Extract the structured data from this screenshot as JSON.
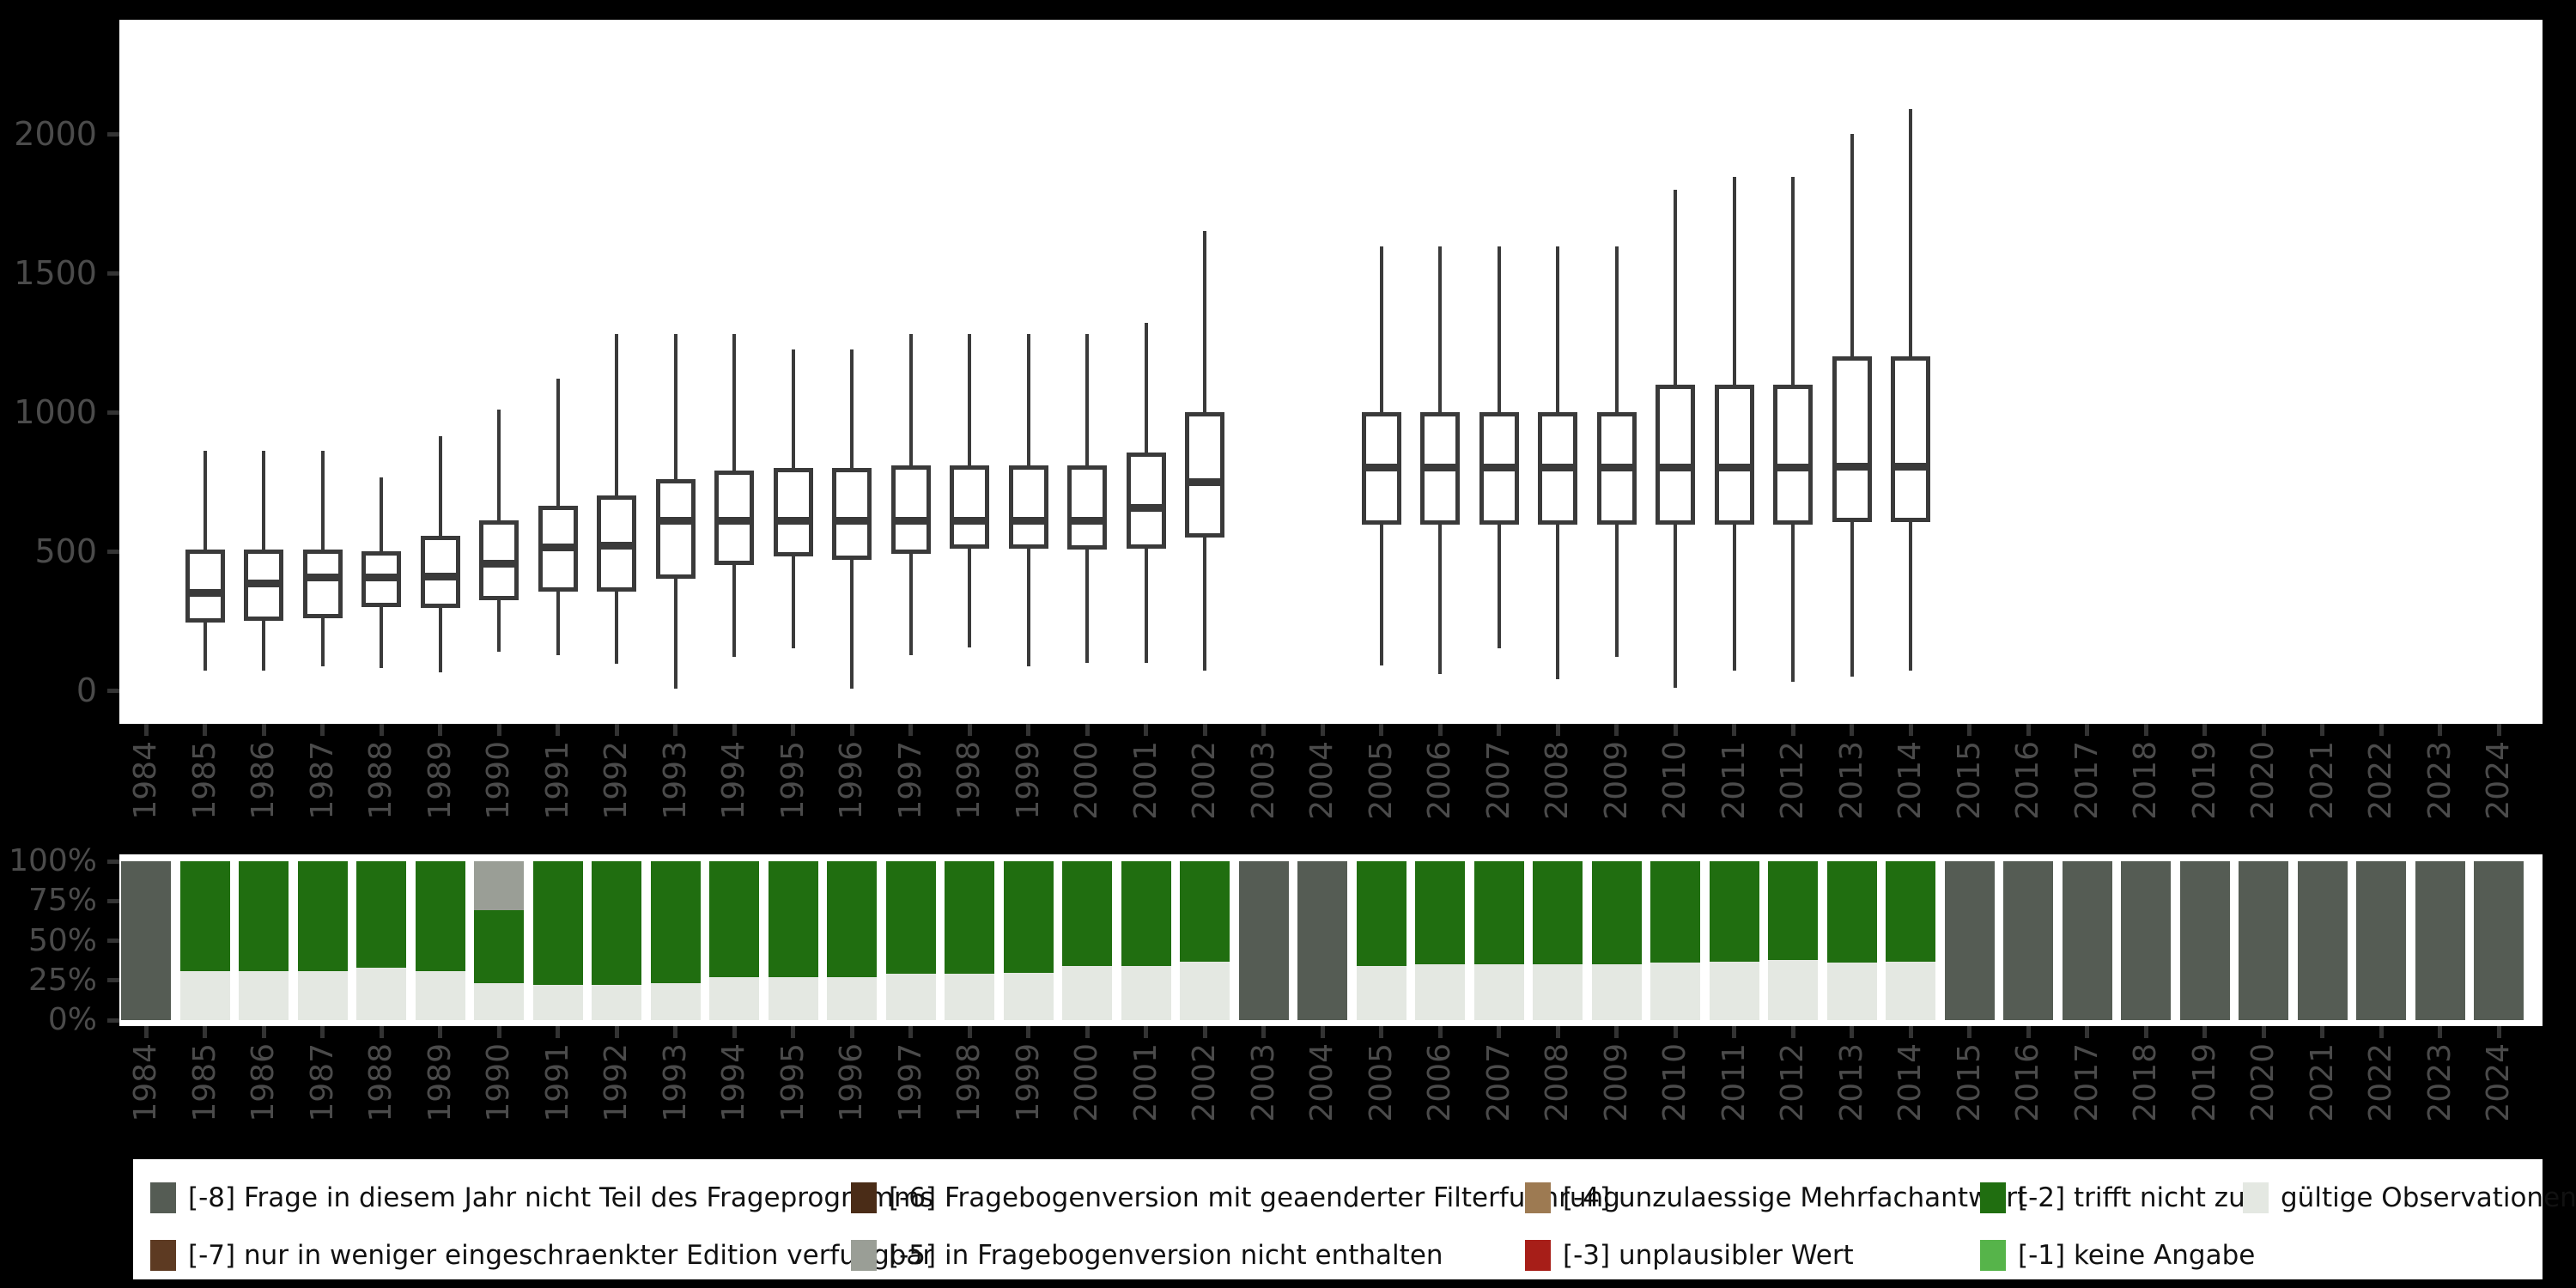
{
  "colors": {
    "background": "#000000",
    "panel": "#ffffff",
    "axis_text": "#4b4b4b",
    "tick": "#333333",
    "box_stroke": "#3a3a3a",
    "segments": {
      "-8": "#555c54",
      "-7": "#5d3a22",
      "-6": "#4a2c17",
      "-5": "#9a9e96",
      "-4": "#9d7a52",
      "-3": "#a71e18",
      "-2": "#206e10",
      "-1": "#56b44a",
      "valid": "#e4e8e2"
    }
  },
  "chart_data": [
    {
      "type": "boxplot",
      "title": "",
      "xlabel": "",
      "ylabel": "",
      "x_years": [
        1984,
        1985,
        1986,
        1987,
        1988,
        1989,
        1990,
        1991,
        1992,
        1993,
        1994,
        1995,
        1996,
        1997,
        1998,
        1999,
        2000,
        2001,
        2002,
        2003,
        2004,
        2005,
        2006,
        2007,
        2008,
        2009,
        2010,
        2011,
        2012,
        2013,
        2014,
        2015,
        2016,
        2017,
        2018,
        2019,
        2020,
        2021,
        2022,
        2023,
        2024
      ],
      "y_tick_values": [
        0,
        500,
        1000,
        1500,
        2000
      ],
      "y_tick_labels": [
        "0",
        "500",
        "1000",
        "1500",
        "2000"
      ],
      "ylim": [
        -120,
        2410
      ],
      "grid": "off",
      "note_years_without_box": [
        1984,
        2003,
        2004,
        2015,
        2016,
        2017,
        2018,
        2019,
        2020,
        2021,
        2022,
        2023,
        2024
      ],
      "columns": [
        "year",
        "whisker_low",
        "q1",
        "median",
        "q3",
        "whisker_high"
      ],
      "boxes": [
        [
          1985,
          70,
          245,
          350,
          505,
          860
        ],
        [
          1986,
          70,
          250,
          385,
          505,
          860
        ],
        [
          1987,
          85,
          260,
          405,
          505,
          860
        ],
        [
          1988,
          80,
          300,
          405,
          500,
          765
        ],
        [
          1989,
          65,
          295,
          410,
          555,
          915
        ],
        [
          1990,
          140,
          325,
          455,
          610,
          1010
        ],
        [
          1991,
          125,
          355,
          515,
          665,
          1120
        ],
        [
          1992,
          95,
          355,
          520,
          700,
          1280
        ],
        [
          1993,
          5,
          400,
          610,
          760,
          1280
        ],
        [
          1994,
          120,
          450,
          610,
          790,
          1280
        ],
        [
          1995,
          150,
          480,
          610,
          800,
          1225
        ],
        [
          1996,
          5,
          470,
          610,
          800,
          1225
        ],
        [
          1997,
          125,
          490,
          610,
          810,
          1280
        ],
        [
          1998,
          155,
          510,
          610,
          810,
          1280
        ],
        [
          1999,
          85,
          510,
          610,
          810,
          1280
        ],
        [
          2000,
          100,
          505,
          610,
          810,
          1280
        ],
        [
          2001,
          100,
          510,
          655,
          855,
          1320
        ],
        [
          2002,
          70,
          550,
          750,
          1000,
          1650
        ],
        [
          2005,
          90,
          595,
          800,
          1000,
          1595
        ],
        [
          2006,
          60,
          595,
          800,
          1000,
          1595
        ],
        [
          2007,
          150,
          595,
          800,
          1000,
          1595
        ],
        [
          2008,
          40,
          595,
          800,
          1000,
          1595
        ],
        [
          2009,
          120,
          595,
          800,
          1000,
          1595
        ],
        [
          2010,
          10,
          595,
          800,
          1100,
          1800
        ],
        [
          2011,
          70,
          595,
          800,
          1100,
          1845
        ],
        [
          2012,
          30,
          595,
          800,
          1100,
          1845
        ],
        [
          2013,
          50,
          605,
          805,
          1200,
          2000
        ],
        [
          2014,
          70,
          605,
          805,
          1200,
          2090
        ]
      ]
    },
    {
      "type": "bar",
      "subtype": "stacked-percent",
      "title": "",
      "x_years": [
        1984,
        1985,
        1986,
        1987,
        1988,
        1989,
        1990,
        1991,
        1992,
        1993,
        1994,
        1995,
        1996,
        1997,
        1998,
        1999,
        2000,
        2001,
        2002,
        2003,
        2004,
        2005,
        2006,
        2007,
        2008,
        2009,
        2010,
        2011,
        2012,
        2013,
        2014,
        2015,
        2016,
        2017,
        2018,
        2019,
        2020,
        2021,
        2022,
        2023,
        2024
      ],
      "y_tick_values": [
        100,
        75,
        50,
        25,
        0
      ],
      "y_tick_labels": [
        "100%",
        "75%",
        "50%",
        "25%",
        "0%"
      ],
      "ylim": [
        0,
        100
      ],
      "grid": "off",
      "segment_order_note": "segments listed top-to-bottom of each bar, pct of 100",
      "bars": [
        {
          "year": 1984,
          "segments": [
            [
              "-8",
              100
            ]
          ]
        },
        {
          "year": 1985,
          "segments": [
            [
              "-2",
              69
            ],
            [
              "valid",
              31
            ]
          ]
        },
        {
          "year": 1986,
          "segments": [
            [
              "-2",
              69
            ],
            [
              "valid",
              31
            ]
          ]
        },
        {
          "year": 1987,
          "segments": [
            [
              "-2",
              69
            ],
            [
              "valid",
              31
            ]
          ]
        },
        {
          "year": 1988,
          "segments": [
            [
              "-2",
              67
            ],
            [
              "valid",
              33
            ]
          ]
        },
        {
          "year": 1989,
          "segments": [
            [
              "-2",
              69
            ],
            [
              "valid",
              31
            ]
          ]
        },
        {
          "year": 1990,
          "segments": [
            [
              "-5",
              31
            ],
            [
              "-2",
              46
            ],
            [
              "valid",
              23
            ]
          ]
        },
        {
          "year": 1991,
          "segments": [
            [
              "-2",
              78
            ],
            [
              "valid",
              22
            ]
          ]
        },
        {
          "year": 1992,
          "segments": [
            [
              "-2",
              78
            ],
            [
              "valid",
              22
            ]
          ]
        },
        {
          "year": 1993,
          "segments": [
            [
              "-2",
              77
            ],
            [
              "valid",
              23
            ]
          ]
        },
        {
          "year": 1994,
          "segments": [
            [
              "-2",
              73
            ],
            [
              "valid",
              27
            ]
          ]
        },
        {
          "year": 1995,
          "segments": [
            [
              "-2",
              73
            ],
            [
              "valid",
              27
            ]
          ]
        },
        {
          "year": 1996,
          "segments": [
            [
              "-2",
              73
            ],
            [
              "valid",
              27
            ]
          ]
        },
        {
          "year": 1997,
          "segments": [
            [
              "-2",
              71
            ],
            [
              "valid",
              29
            ]
          ]
        },
        {
          "year": 1998,
          "segments": [
            [
              "-2",
              71
            ],
            [
              "valid",
              29
            ]
          ]
        },
        {
          "year": 1999,
          "segments": [
            [
              "-2",
              70
            ],
            [
              "valid",
              30
            ]
          ]
        },
        {
          "year": 2000,
          "segments": [
            [
              "-2",
              66
            ],
            [
              "valid",
              34
            ]
          ]
        },
        {
          "year": 2001,
          "segments": [
            [
              "-2",
              66
            ],
            [
              "valid",
              34
            ]
          ]
        },
        {
          "year": 2002,
          "segments": [
            [
              "-2",
              63
            ],
            [
              "valid",
              37
            ]
          ]
        },
        {
          "year": 2003,
          "segments": [
            [
              "-8",
              100
            ]
          ]
        },
        {
          "year": 2004,
          "segments": [
            [
              "-8",
              100
            ]
          ]
        },
        {
          "year": 2005,
          "segments": [
            [
              "-2",
              66
            ],
            [
              "valid",
              34
            ]
          ]
        },
        {
          "year": 2006,
          "segments": [
            [
              "-2",
              65
            ],
            [
              "valid",
              35
            ]
          ]
        },
        {
          "year": 2007,
          "segments": [
            [
              "-2",
              65
            ],
            [
              "valid",
              35
            ]
          ]
        },
        {
          "year": 2008,
          "segments": [
            [
              "-2",
              65
            ],
            [
              "valid",
              35
            ]
          ]
        },
        {
          "year": 2009,
          "segments": [
            [
              "-2",
              65
            ],
            [
              "valid",
              35
            ]
          ]
        },
        {
          "year": 2010,
          "segments": [
            [
              "-2",
              64
            ],
            [
              "valid",
              36
            ]
          ]
        },
        {
          "year": 2011,
          "segments": [
            [
              "-2",
              63
            ],
            [
              "valid",
              37
            ]
          ]
        },
        {
          "year": 2012,
          "segments": [
            [
              "-2",
              62
            ],
            [
              "valid",
              38
            ]
          ]
        },
        {
          "year": 2013,
          "segments": [
            [
              "-2",
              64
            ],
            [
              "valid",
              36
            ]
          ]
        },
        {
          "year": 2014,
          "segments": [
            [
              "-2",
              63
            ],
            [
              "valid",
              37
            ]
          ]
        },
        {
          "year": 2015,
          "segments": [
            [
              "-8",
              100
            ]
          ]
        },
        {
          "year": 2016,
          "segments": [
            [
              "-8",
              100
            ]
          ]
        },
        {
          "year": 2017,
          "segments": [
            [
              "-8",
              100
            ]
          ]
        },
        {
          "year": 2018,
          "segments": [
            [
              "-8",
              100
            ]
          ]
        },
        {
          "year": 2019,
          "segments": [
            [
              "-8",
              100
            ]
          ]
        },
        {
          "year": 2020,
          "segments": [
            [
              "-8",
              100
            ]
          ]
        },
        {
          "year": 2021,
          "segments": [
            [
              "-8",
              100
            ]
          ]
        },
        {
          "year": 2022,
          "segments": [
            [
              "-8",
              100
            ]
          ]
        },
        {
          "year": 2023,
          "segments": [
            [
              "-8",
              100
            ]
          ]
        },
        {
          "year": 2024,
          "segments": [
            [
              "-8",
              100
            ]
          ]
        }
      ]
    }
  ],
  "legend": {
    "position": "bottom",
    "labels": {
      "-8": "[-8] Frage in diesem Jahr nicht Teil des Frageprogramms",
      "-7": "[-7] nur in weniger eingeschraenkter Edition verfuegbar",
      "-6": "[-6] Fragebogenversion mit geaenderter Filterfuehrung",
      "-5": "[-5] in Fragebogenversion nicht enthalten",
      "-4": "[-4] unzulaessige Mehrfachantwort",
      "-3": "[-3] unplausibler Wert",
      "-2": "[-2] trifft nicht zu",
      "-1": "[-1] keine Angabe",
      "valid": "gültige Observationen"
    },
    "rows": [
      [
        "-8",
        "-6",
        "-4",
        "-2",
        "valid"
      ],
      [
        "-7",
        "-5",
        "-3",
        "-1"
      ]
    ]
  }
}
